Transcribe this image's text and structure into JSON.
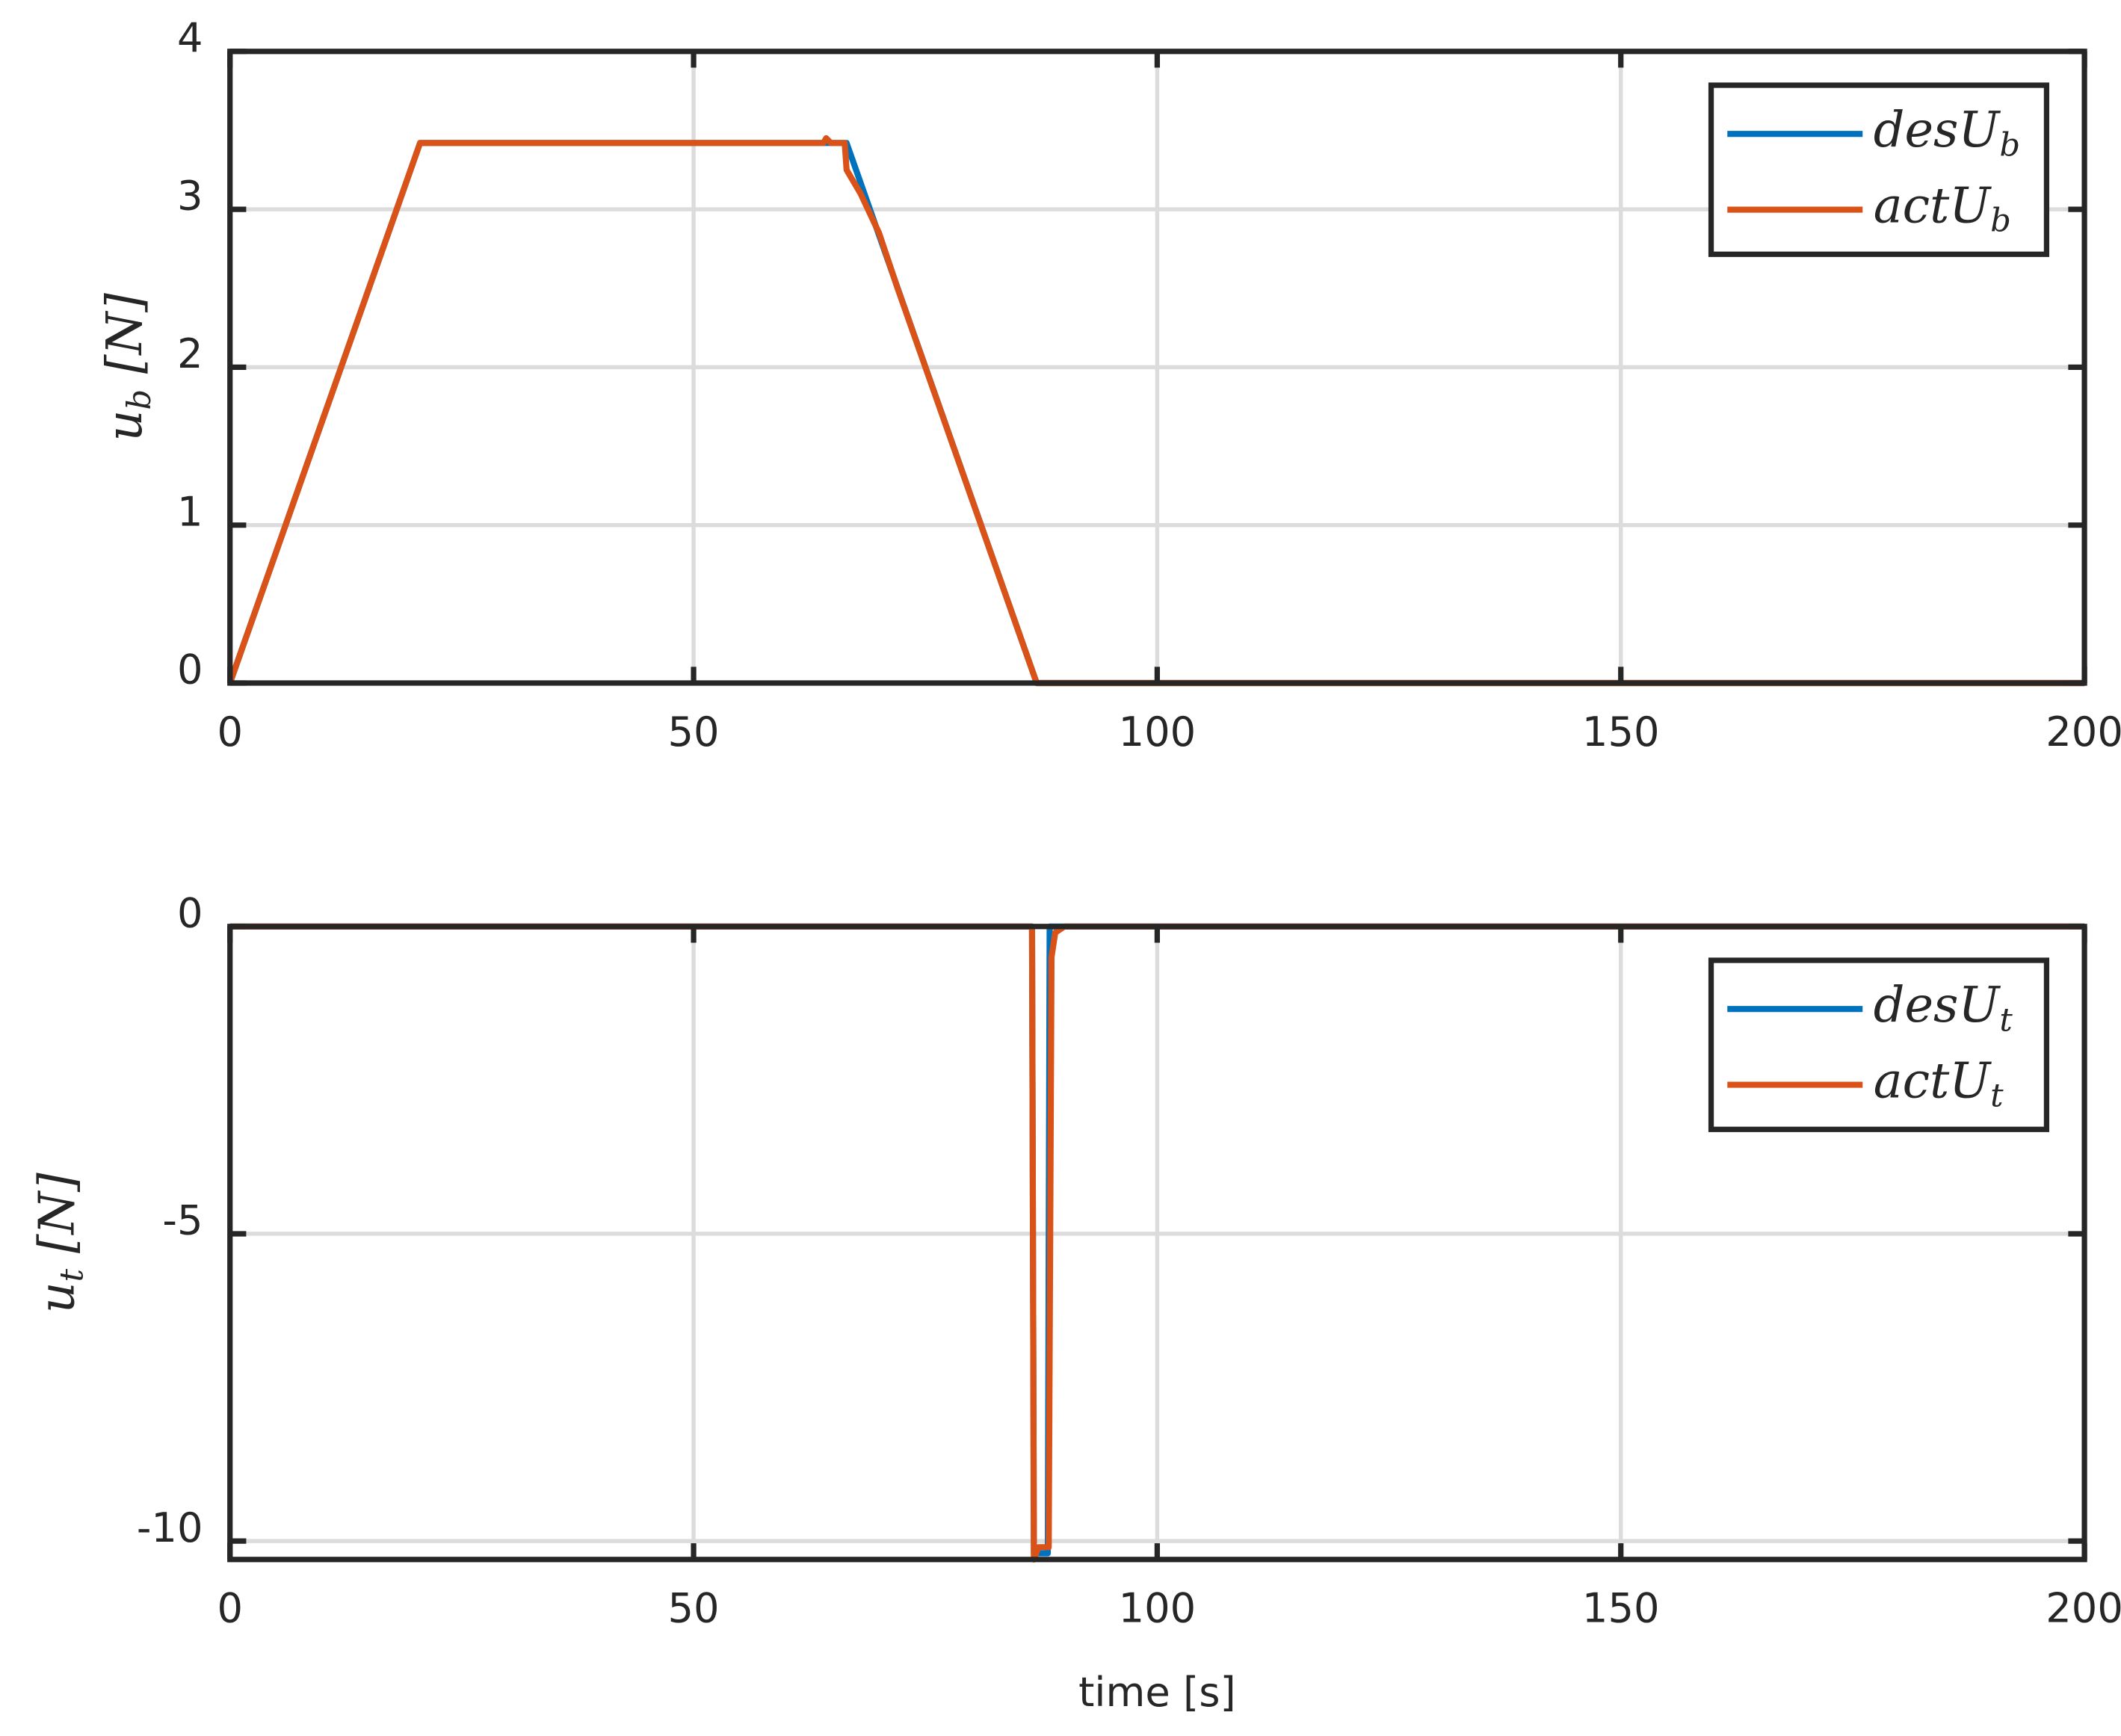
{
  "chart_data": [
    {
      "type": "line",
      "ylabel": "ub [N]",
      "xlim": [
        0,
        200
      ],
      "ylim": [
        0,
        4
      ],
      "xticks": [
        0,
        50,
        100,
        150,
        200
      ],
      "yticks": [
        0,
        1,
        2,
        3,
        4
      ],
      "grid": true,
      "legend_position": "upper right",
      "series": [
        {
          "name": "desUb",
          "color": "#0072BD",
          "x": [
            0,
            20.5,
            66.5,
            87,
            200
          ],
          "values": [
            0,
            3.42,
            3.42,
            0,
            0
          ]
        },
        {
          "name": "actUb",
          "color": "#D95319",
          "x": [
            0,
            20.5,
            64,
            64.3,
            64.8,
            66.3,
            66.5,
            68,
            70,
            72,
            87,
            200
          ],
          "values": [
            0,
            3.42,
            3.42,
            3.45,
            3.42,
            3.42,
            3.25,
            3.1,
            2.85,
            2.5,
            0,
            0
          ]
        }
      ]
    },
    {
      "type": "line",
      "ylabel": "ut [N]",
      "xlabel": "time [s]",
      "xlim": [
        0,
        200
      ],
      "ylim": [
        -10.3,
        0
      ],
      "xticks": [
        0,
        50,
        100,
        150,
        200
      ],
      "yticks": [
        -10,
        -5,
        0
      ],
      "grid": true,
      "legend_position": "upper right",
      "series": [
        {
          "name": "desUt",
          "color": "#0072BD",
          "x": [
            0,
            86.5,
            86.7,
            88.2,
            88.4,
            200
          ],
          "values": [
            0,
            0,
            -10.2,
            -10.2,
            0,
            0
          ]
        },
        {
          "name": "actUt",
          "color": "#D95319",
          "x": [
            0,
            86.5,
            86.7,
            87.2,
            88.3,
            88.6,
            89,
            90,
            200
          ],
          "values": [
            0,
            0,
            -10.3,
            -10.1,
            -10.1,
            -0.5,
            -0.1,
            0,
            0
          ]
        }
      ]
    }
  ]
}
